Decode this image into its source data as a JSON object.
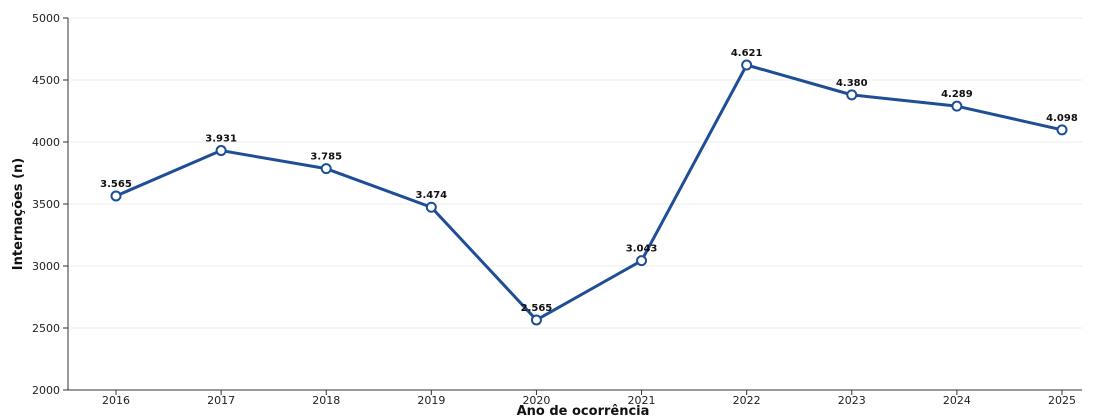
{
  "chart_data": {
    "type": "line",
    "title": "",
    "xlabel": "Ano de ocorrência",
    "ylabel": "Internações (n)",
    "x": [
      "2016",
      "2017",
      "2018",
      "2019",
      "2020",
      "2021",
      "2022",
      "2023",
      "2024",
      "2025"
    ],
    "series": [
      {
        "values": [
          3565,
          3931,
          3785,
          3474,
          2565,
          3043,
          4621,
          4380,
          4289,
          4098
        ],
        "data_labels": [
          "3.565",
          "3.931",
          "3.785",
          "3.474",
          "2.565",
          "3.043",
          "4.621",
          "4.380",
          "4.289",
          "4.098"
        ]
      }
    ],
    "ylim": [
      2000,
      5000
    ],
    "yticks": [
      2000,
      2500,
      3000,
      3500,
      4000,
      4500,
      5000
    ],
    "ytick_labels": [
      "2000",
      "2500",
      "3000",
      "3500",
      "4000",
      "4500",
      "5000"
    ],
    "grid": "horizontal",
    "legend": "none",
    "colors": {
      "line": "#1f4e96",
      "marker_fill": "#ffffff",
      "axis": "#333333",
      "grid": "#eeeeee"
    }
  }
}
